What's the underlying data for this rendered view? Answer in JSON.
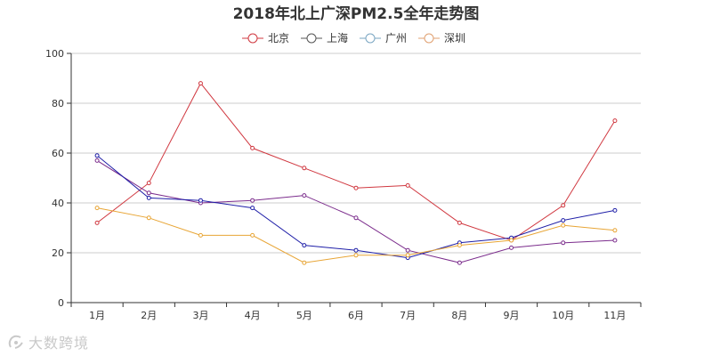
{
  "chart_data": {
    "type": "line",
    "title": "2018年北上广深PM2.5全年走势图",
    "xlabel": "",
    "ylabel": "",
    "categories": [
      "1月",
      "2月",
      "3月",
      "4月",
      "5月",
      "6月",
      "7月",
      "8月",
      "9月",
      "10月",
      "11月"
    ],
    "ylim": [
      0,
      100
    ],
    "yticks": [
      0,
      20,
      40,
      60,
      80,
      100
    ],
    "grid": true,
    "legend_position": "top-center",
    "series": [
      {
        "name": "北京",
        "color": "#d0373f",
        "values": [
          32,
          48,
          88,
          62,
          54,
          46,
          47,
          32,
          25,
          39,
          73
        ]
      },
      {
        "name": "上海",
        "color": "#7b2c8c",
        "values": [
          57,
          44,
          40,
          41,
          43,
          34,
          21,
          16,
          22,
          24,
          25
        ]
      },
      {
        "name": "广州",
        "color": "#1f1fa8",
        "values": [
          59,
          42,
          41,
          38,
          23,
          21,
          18,
          24,
          26,
          33,
          37
        ]
      },
      {
        "name": "深圳",
        "color": "#e8a535",
        "values": [
          38,
          34,
          27,
          27,
          16,
          19,
          19,
          23,
          25,
          31,
          29
        ]
      }
    ],
    "legend_marker_colors": [
      "#d0373f",
      "#555555",
      "#7aa6c2",
      "#e0a070"
    ]
  },
  "watermark": {
    "text": "大数跨境"
  }
}
